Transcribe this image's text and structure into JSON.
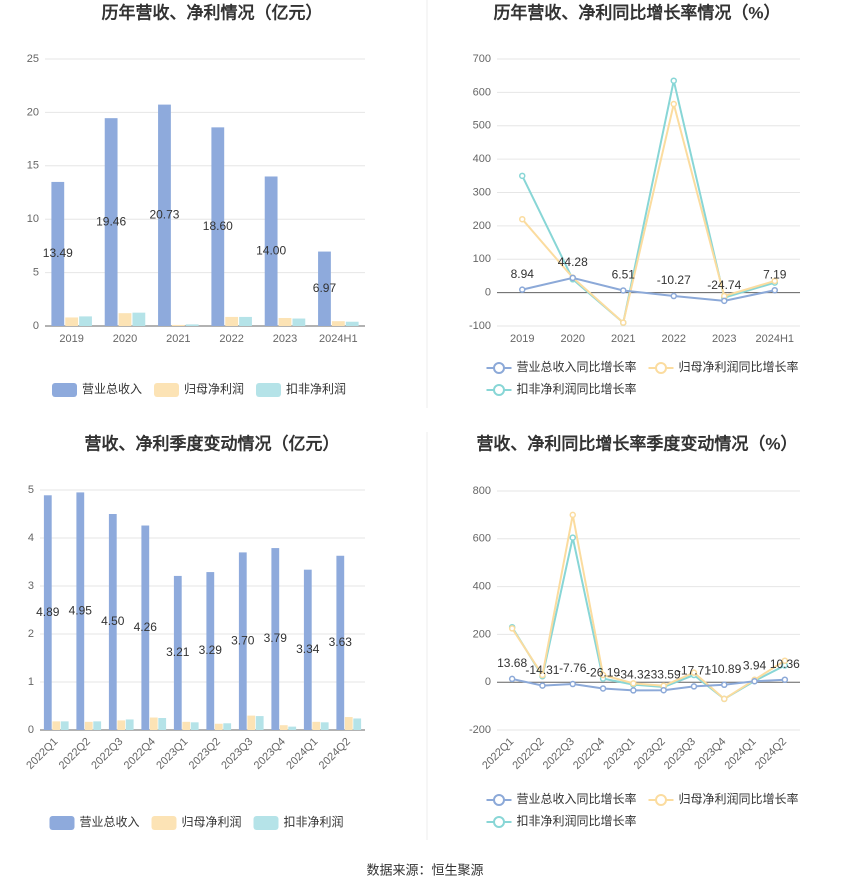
{
  "chart_data": [
    {
      "type": "bar",
      "title": "历年营收、净利情况（亿元）",
      "categories": [
        "2019",
        "2020",
        "2021",
        "2022",
        "2023",
        "2024H1"
      ],
      "series": [
        {
          "name": "营业总收入",
          "color": "#8eaadc",
          "values": [
            13.49,
            19.46,
            20.73,
            18.6,
            14.0,
            6.97
          ],
          "value_labels": [
            "13.49",
            "19.46",
            "20.73",
            "18.60",
            "14.00",
            "6.97"
          ],
          "data_labels": true
        },
        {
          "name": "归母净利润",
          "color": "#fce3b5",
          "values": [
            0.8,
            1.2,
            0.1,
            0.85,
            0.75,
            0.45
          ]
        },
        {
          "name": "扣非净利润",
          "color": "#b5e3e8",
          "values": [
            0.9,
            1.25,
            0.15,
            0.85,
            0.7,
            0.4
          ]
        }
      ],
      "ylim": [
        0,
        25
      ],
      "yticks": [
        0,
        5,
        10,
        15,
        20,
        25
      ],
      "grid": true,
      "legend": "bottom"
    },
    {
      "type": "line",
      "title": "历年营收、净利同比增长率情况（%）",
      "categories": [
        "2019",
        "2020",
        "2021",
        "2022",
        "2023",
        "2024H1"
      ],
      "series": [
        {
          "name": "营业总收入同比增长率",
          "color": "#8ca9d8",
          "values": [
            8.94,
            44.28,
            6.51,
            -10.27,
            -24.74,
            7.19
          ],
          "data_labels": true
        },
        {
          "name": "归母净利润同比增长率",
          "color": "#fbdc9f",
          "values": [
            220,
            45,
            -90,
            565,
            -10,
            35
          ]
        },
        {
          "name": "扣非净利润同比增长率",
          "color": "#88d6d6",
          "values": [
            350,
            40,
            -90,
            635,
            -15,
            30
          ]
        }
      ],
      "ylim": [
        -100,
        700
      ],
      "yticks": [
        -100,
        0,
        100,
        200,
        300,
        400,
        500,
        600,
        700
      ],
      "grid": true,
      "legend": "bottom"
    },
    {
      "type": "bar",
      "title": "营收、净利季度变动情况（亿元）",
      "categories": [
        "2022Q1",
        "2022Q2",
        "2022Q3",
        "2022Q4",
        "2023Q1",
        "2023Q2",
        "2023Q3",
        "2023Q4",
        "2024Q1",
        "2024Q2"
      ],
      "series": [
        {
          "name": "营业总收入",
          "color": "#8eaadc",
          "values": [
            4.89,
            4.95,
            4.5,
            4.26,
            3.21,
            3.29,
            3.7,
            3.79,
            3.34,
            3.63
          ],
          "value_labels": [
            "4.89",
            "4.95",
            "4.50",
            "4.26",
            "3.21",
            "3.29",
            "3.70",
            "3.79",
            "3.34",
            "3.63"
          ],
          "data_labels": true
        },
        {
          "name": "归母净利润",
          "color": "#fce3b5",
          "values": [
            0.18,
            0.17,
            0.2,
            0.26,
            0.17,
            0.13,
            0.3,
            0.1,
            0.17,
            0.27
          ]
        },
        {
          "name": "扣非净利润",
          "color": "#b5e3e8",
          "values": [
            0.18,
            0.18,
            0.22,
            0.25,
            0.16,
            0.14,
            0.29,
            0.07,
            0.16,
            0.24
          ]
        }
      ],
      "ylim": [
        0,
        5
      ],
      "yticks": [
        0,
        1,
        2,
        3,
        4,
        5
      ],
      "grid": true,
      "legend": "bottom",
      "x_label_rotation": 45
    },
    {
      "type": "line",
      "title": "营收、净利同比增长率季度变动情况（%）",
      "categories": [
        "2022Q1",
        "2022Q2",
        "2022Q3",
        "2022Q4",
        "2023Q1",
        "2023Q2",
        "2023Q3",
        "2023Q4",
        "2024Q1",
        "2024Q2"
      ],
      "series": [
        {
          "name": "营业总收入同比增长率",
          "color": "#8ca9d8",
          "values": [
            13.68,
            -14.31,
            -7.76,
            -26.19,
            -34.32,
            -33.59,
            -17.71,
            -10.89,
            3.94,
            10.36
          ],
          "data_labels": true
        },
        {
          "name": "归母净利润同比增长率",
          "color": "#fbdc9f",
          "values": [
            225,
            30,
            700,
            30,
            -5,
            -15,
            40,
            -70,
            10,
            90
          ]
        },
        {
          "name": "扣非净利润同比增长率",
          "color": "#88d6d6",
          "values": [
            230,
            25,
            605,
            15,
            -10,
            -20,
            30,
            -70,
            5,
            70
          ]
        }
      ],
      "ylim": [
        -200,
        800
      ],
      "yticks": [
        -200,
        0,
        200,
        400,
        600,
        800
      ],
      "grid": true,
      "legend": "bottom",
      "x_label_rotation": 45
    }
  ],
  "source": "数据来源：恒生聚源"
}
